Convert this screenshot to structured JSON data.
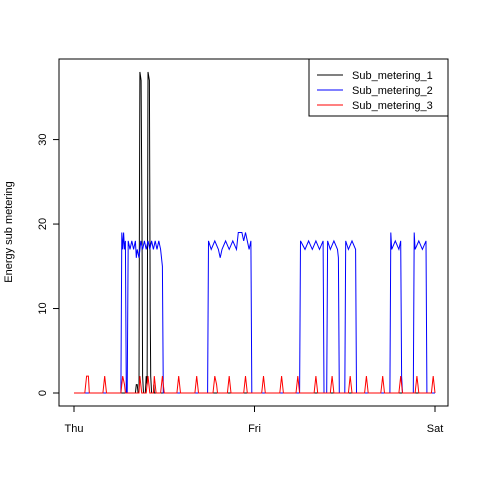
{
  "chart_data": {
    "type": "line",
    "title": "",
    "xlabel": "",
    "ylabel": "Energy sub metering",
    "x_ticks": [
      "Thu",
      "Fri",
      "Sat"
    ],
    "x_range_days": [
      0,
      2
    ],
    "ylim": [
      0,
      38
    ],
    "y_ticks": [
      0,
      10,
      20,
      30
    ],
    "grid": false,
    "legend_position": "top-right",
    "series": [
      {
        "name": "Sub_metering_1",
        "color": "#000000",
        "points": [
          [
            0.0,
            0
          ],
          [
            0.34,
            0
          ],
          [
            0.345,
            1
          ],
          [
            0.35,
            1
          ],
          [
            0.355,
            0
          ],
          [
            0.36,
            0
          ],
          [
            0.362,
            16
          ],
          [
            0.365,
            38
          ],
          [
            0.372,
            37
          ],
          [
            0.377,
            20
          ],
          [
            0.38,
            2
          ],
          [
            0.385,
            0
          ],
          [
            0.395,
            0
          ],
          [
            0.398,
            1
          ],
          [
            0.4,
            2
          ],
          [
            0.405,
            1
          ],
          [
            0.408,
            20
          ],
          [
            0.41,
            38
          ],
          [
            0.418,
            37
          ],
          [
            0.422,
            10
          ],
          [
            0.425,
            2
          ],
          [
            0.43,
            0
          ],
          [
            0.44,
            0
          ],
          [
            0.442,
            1
          ],
          [
            0.445,
            0
          ],
          [
            2.0,
            0
          ]
        ]
      },
      {
        "name": "Sub_metering_2",
        "color": "#0000ff",
        "points": [
          [
            0.0,
            0
          ],
          [
            0.25,
            0
          ],
          [
            0.26,
            0
          ],
          [
            0.265,
            19
          ],
          [
            0.27,
            17
          ],
          [
            0.275,
            19
          ],
          [
            0.28,
            17
          ],
          [
            0.285,
            18
          ],
          [
            0.29,
            0
          ],
          [
            0.295,
            0
          ],
          [
            0.3,
            18
          ],
          [
            0.31,
            17
          ],
          [
            0.32,
            18
          ],
          [
            0.33,
            17
          ],
          [
            0.34,
            18
          ],
          [
            0.345,
            16
          ],
          [
            0.35,
            17
          ],
          [
            0.36,
            16
          ],
          [
            0.365,
            17
          ],
          [
            0.37,
            18
          ],
          [
            0.38,
            17
          ],
          [
            0.39,
            18
          ],
          [
            0.4,
            17
          ],
          [
            0.41,
            18
          ],
          [
            0.42,
            17
          ],
          [
            0.43,
            18
          ],
          [
            0.44,
            17
          ],
          [
            0.45,
            18
          ],
          [
            0.46,
            17
          ],
          [
            0.47,
            18
          ],
          [
            0.48,
            17
          ],
          [
            0.485,
            16
          ],
          [
            0.49,
            15
          ],
          [
            0.495,
            0
          ],
          [
            0.74,
            0
          ],
          [
            0.745,
            18
          ],
          [
            0.76,
            17
          ],
          [
            0.78,
            18
          ],
          [
            0.8,
            17
          ],
          [
            0.81,
            16
          ],
          [
            0.82,
            17
          ],
          [
            0.84,
            18
          ],
          [
            0.86,
            17
          ],
          [
            0.88,
            18
          ],
          [
            0.9,
            17
          ],
          [
            0.91,
            19
          ],
          [
            0.93,
            19
          ],
          [
            0.94,
            18
          ],
          [
            0.95,
            19
          ],
          [
            0.96,
            18
          ],
          [
            0.97,
            17
          ],
          [
            0.98,
            18
          ],
          [
            0.985,
            0
          ],
          [
            1.25,
            0
          ],
          [
            1.255,
            18
          ],
          [
            1.28,
            17
          ],
          [
            1.3,
            18
          ],
          [
            1.32,
            17
          ],
          [
            1.34,
            18
          ],
          [
            1.36,
            17
          ],
          [
            1.38,
            18
          ],
          [
            1.385,
            0
          ],
          [
            1.4,
            0
          ],
          [
            1.405,
            18
          ],
          [
            1.42,
            17
          ],
          [
            1.44,
            18
          ],
          [
            1.46,
            17
          ],
          [
            1.465,
            16
          ],
          [
            1.47,
            0
          ],
          [
            1.5,
            0
          ],
          [
            1.505,
            18
          ],
          [
            1.52,
            17
          ],
          [
            1.54,
            18
          ],
          [
            1.56,
            17
          ],
          [
            1.565,
            0
          ],
          [
            1.75,
            0
          ],
          [
            1.755,
            19
          ],
          [
            1.76,
            17
          ],
          [
            1.78,
            18
          ],
          [
            1.8,
            17
          ],
          [
            1.81,
            18
          ],
          [
            1.815,
            2
          ],
          [
            1.82,
            0
          ],
          [
            1.88,
            0
          ],
          [
            1.885,
            19
          ],
          [
            1.89,
            17
          ],
          [
            1.91,
            18
          ],
          [
            1.93,
            17
          ],
          [
            1.95,
            18
          ],
          [
            1.955,
            0
          ],
          [
            2.0,
            0
          ]
        ]
      },
      {
        "name": "Sub_metering_3",
        "color": "#ff0000",
        "points": [
          [
            0.0,
            0
          ],
          [
            0.06,
            0
          ],
          [
            0.065,
            1
          ],
          [
            0.07,
            2
          ],
          [
            0.08,
            2
          ],
          [
            0.085,
            0
          ],
          [
            0.16,
            0
          ],
          [
            0.165,
            1
          ],
          [
            0.17,
            2
          ],
          [
            0.175,
            1
          ],
          [
            0.18,
            0
          ],
          [
            0.26,
            0
          ],
          [
            0.265,
            1
          ],
          [
            0.27,
            2
          ],
          [
            0.28,
            1
          ],
          [
            0.285,
            0
          ],
          [
            0.36,
            0
          ],
          [
            0.365,
            2
          ],
          [
            0.37,
            1
          ],
          [
            0.375,
            0
          ],
          [
            0.4,
            0
          ],
          [
            0.405,
            1
          ],
          [
            0.41,
            2
          ],
          [
            0.415,
            1
          ],
          [
            0.42,
            0
          ],
          [
            0.44,
            0
          ],
          [
            0.445,
            2
          ],
          [
            0.45,
            1
          ],
          [
            0.455,
            0
          ],
          [
            0.48,
            0
          ],
          [
            0.485,
            1
          ],
          [
            0.49,
            2
          ],
          [
            0.495,
            1
          ],
          [
            0.5,
            0
          ],
          [
            0.57,
            0
          ],
          [
            0.575,
            1
          ],
          [
            0.58,
            2
          ],
          [
            0.585,
            1
          ],
          [
            0.59,
            0
          ],
          [
            0.67,
            0
          ],
          [
            0.675,
            1
          ],
          [
            0.68,
            2
          ],
          [
            0.685,
            1
          ],
          [
            0.69,
            0
          ],
          [
            0.77,
            0
          ],
          [
            0.775,
            1
          ],
          [
            0.78,
            2
          ],
          [
            0.79,
            1
          ],
          [
            0.795,
            0
          ],
          [
            0.85,
            0
          ],
          [
            0.855,
            1
          ],
          [
            0.86,
            2
          ],
          [
            0.865,
            1
          ],
          [
            0.87,
            0
          ],
          [
            0.94,
            0
          ],
          [
            0.945,
            1
          ],
          [
            0.95,
            2
          ],
          [
            0.955,
            1
          ],
          [
            0.96,
            0
          ],
          [
            1.04,
            0
          ],
          [
            1.045,
            1
          ],
          [
            1.05,
            2
          ],
          [
            1.055,
            1
          ],
          [
            1.06,
            0
          ],
          [
            1.14,
            0
          ],
          [
            1.145,
            1
          ],
          [
            1.15,
            2
          ],
          [
            1.155,
            1
          ],
          [
            1.16,
            0
          ],
          [
            1.23,
            0
          ],
          [
            1.235,
            1
          ],
          [
            1.24,
            2
          ],
          [
            1.245,
            1
          ],
          [
            1.25,
            0
          ],
          [
            1.33,
            0
          ],
          [
            1.335,
            1
          ],
          [
            1.34,
            2
          ],
          [
            1.345,
            1
          ],
          [
            1.35,
            0
          ],
          [
            1.42,
            0
          ],
          [
            1.425,
            1
          ],
          [
            1.43,
            2
          ],
          [
            1.435,
            1
          ],
          [
            1.44,
            0
          ],
          [
            1.52,
            0
          ],
          [
            1.525,
            1
          ],
          [
            1.53,
            2
          ],
          [
            1.535,
            1
          ],
          [
            1.54,
            0
          ],
          [
            1.61,
            0
          ],
          [
            1.615,
            1
          ],
          [
            1.62,
            2
          ],
          [
            1.625,
            1
          ],
          [
            1.63,
            0
          ],
          [
            1.7,
            0
          ],
          [
            1.705,
            1
          ],
          [
            1.71,
            2
          ],
          [
            1.715,
            1
          ],
          [
            1.72,
            0
          ],
          [
            1.8,
            0
          ],
          [
            1.805,
            1
          ],
          [
            1.81,
            2
          ],
          [
            1.815,
            1
          ],
          [
            1.82,
            0
          ],
          [
            1.89,
            0
          ],
          [
            1.895,
            1
          ],
          [
            1.9,
            2
          ],
          [
            1.905,
            1
          ],
          [
            1.91,
            0
          ],
          [
            1.98,
            0
          ],
          [
            1.985,
            1
          ],
          [
            1.99,
            2
          ],
          [
            1.995,
            1
          ],
          [
            2.0,
            0
          ]
        ]
      }
    ]
  }
}
